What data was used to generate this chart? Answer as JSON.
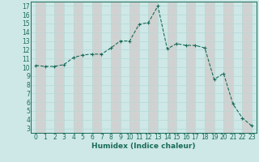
{
  "x": [
    0,
    1,
    2,
    3,
    4,
    5,
    6,
    7,
    8,
    9,
    10,
    11,
    12,
    13,
    14,
    15,
    16,
    17,
    18,
    19,
    20,
    21,
    22,
    23
  ],
  "y": [
    10.2,
    10.1,
    10.1,
    10.3,
    11.1,
    11.4,
    11.5,
    11.5,
    12.2,
    13.0,
    13.0,
    14.9,
    15.1,
    17.0,
    12.1,
    12.7,
    12.5,
    12.5,
    12.2,
    8.6,
    9.3,
    5.8,
    4.2,
    3.3
  ],
  "line_color": "#1a6b5a",
  "bg_color": "#cde8e6",
  "grid_color_major": "#b8d8d6",
  "grid_color_minor": "#dbb8b8",
  "xlabel": "Humidex (Indice chaleur)",
  "xlim": [
    -0.5,
    23.5
  ],
  "ylim": [
    2.5,
    17.5
  ],
  "yticks": [
    3,
    4,
    5,
    6,
    7,
    8,
    9,
    10,
    11,
    12,
    13,
    14,
    15,
    16,
    17
  ],
  "xticks": [
    0,
    1,
    2,
    3,
    4,
    5,
    6,
    7,
    8,
    9,
    10,
    11,
    12,
    13,
    14,
    15,
    16,
    17,
    18,
    19,
    20,
    21,
    22,
    23
  ],
  "xlabel_fontsize": 6.5,
  "tick_fontsize": 5.5,
  "marker_size": 3.0,
  "line_width": 0.8
}
